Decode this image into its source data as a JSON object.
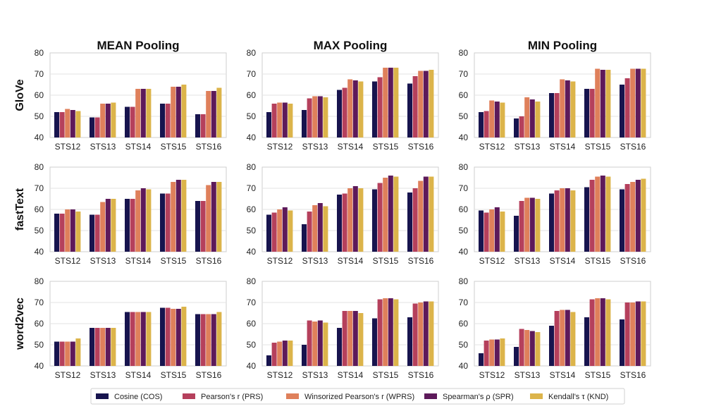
{
  "chart_data": {
    "type": "bar",
    "layout": "3x3 grid of grouped bar charts",
    "columns": [
      "MEAN Pooling",
      "MAX Pooling",
      "MIN Pooling"
    ],
    "rows": [
      "GloVe",
      "fastText",
      "word2vec"
    ],
    "categories": [
      "STS12",
      "STS13",
      "STS14",
      "STS15",
      "STS16"
    ],
    "ylim": [
      40,
      80
    ],
    "yticks": [
      "40",
      "50",
      "60",
      "70",
      "80"
    ],
    "grid": true,
    "legend_placement": "bottom-center",
    "series": [
      {
        "name": "Cosine (COS)",
        "color": "#17144e"
      },
      {
        "name": "Pearson's r (PRS)",
        "color": "#b5405c"
      },
      {
        "name": "Winsorized Pearson's r (WPRS)",
        "color": "#df805b"
      },
      {
        "name": "Spearman's ρ (SPR)",
        "color": "#5d1a5a"
      },
      {
        "name": "Kendall's τ (KND)",
        "color": "#dcb44a"
      }
    ],
    "panels": [
      [
        {
          "row": "GloVe",
          "column": "MEAN Pooling",
          "values": [
            [
              52,
              52,
              53.5,
              53,
              52.5
            ],
            [
              49.5,
              49.5,
              56,
              56,
              56.5
            ],
            [
              54.5,
              54.5,
              63,
              63,
              63
            ],
            [
              56,
              56,
              64,
              64,
              65
            ],
            [
              51,
              51,
              62,
              62,
              63.5
            ]
          ]
        },
        {
          "row": "GloVe",
          "column": "MAX Pooling",
          "values": [
            [
              52,
              56,
              56.5,
              56.5,
              56
            ],
            [
              53,
              58.5,
              59.5,
              59.5,
              59
            ],
            [
              62.5,
              63.5,
              67.5,
              67,
              66.5
            ],
            [
              66.5,
              68.5,
              73,
              73,
              73
            ],
            [
              65.5,
              69,
              71.5,
              71.5,
              72
            ]
          ]
        },
        {
          "row": "GloVe",
          "column": "MIN Pooling",
          "values": [
            [
              52,
              52.5,
              57.5,
              57,
              56.5
            ],
            [
              49,
              50,
              59,
              58,
              57
            ],
            [
              61,
              61,
              67.5,
              67,
              66.5
            ],
            [
              63,
              63,
              72.5,
              72,
              72
            ],
            [
              65,
              68,
              72.5,
              72.5,
              72.5
            ]
          ]
        }
      ],
      [
        {
          "row": "fastText",
          "column": "MEAN Pooling",
          "values": [
            [
              58,
              58,
              60,
              60,
              59
            ],
            [
              57.5,
              57.5,
              63.5,
              65,
              65
            ],
            [
              65,
              65,
              69,
              70,
              69.5
            ],
            [
              67.5,
              67.5,
              73,
              74,
              74
            ],
            [
              64,
              64,
              71.5,
              73,
              73
            ]
          ]
        },
        {
          "row": "fastText",
          "column": "MAX Pooling",
          "values": [
            [
              57.5,
              58.5,
              60,
              61,
              59.5
            ],
            [
              53,
              59,
              62,
              63,
              61.5
            ],
            [
              67,
              67.5,
              70,
              71,
              70
            ],
            [
              69.5,
              72.5,
              75,
              76,
              75.5
            ],
            [
              68,
              70,
              73.5,
              75.5,
              75.5
            ]
          ]
        },
        {
          "row": "fastText",
          "column": "MIN Pooling",
          "values": [
            [
              59.5,
              58.5,
              60,
              61,
              59
            ],
            [
              57,
              64,
              65.5,
              65.5,
              65
            ],
            [
              67.5,
              69,
              70,
              70,
              69
            ],
            [
              70.5,
              74,
              75.5,
              76,
              75.5
            ],
            [
              69.5,
              72,
              73,
              74,
              74.5
            ]
          ]
        }
      ],
      [
        {
          "row": "word2vec",
          "column": "MEAN Pooling",
          "values": [
            [
              51.5,
              51.5,
              51.5,
              51.5,
              53
            ],
            [
              58,
              58,
              58,
              58,
              58
            ],
            [
              65.5,
              65.5,
              65.5,
              65.5,
              65.5
            ],
            [
              67.5,
              67.5,
              67,
              67,
              68
            ],
            [
              64.5,
              64.5,
              64.5,
              64.5,
              65.5
            ]
          ]
        },
        {
          "row": "word2vec",
          "column": "MAX Pooling",
          "values": [
            [
              45,
              51,
              51.5,
              52,
              52
            ],
            [
              50,
              61.5,
              61,
              61.5,
              60.5
            ],
            [
              58,
              66,
              66,
              66,
              65
            ],
            [
              62.5,
              71.5,
              72,
              72,
              71.5
            ],
            [
              63,
              69.5,
              70,
              70.5,
              70.5
            ]
          ]
        },
        {
          "row": "word2vec",
          "column": "MIN Pooling",
          "values": [
            [
              46,
              52,
              52.5,
              52.5,
              53
            ],
            [
              49,
              57.5,
              57,
              56.5,
              56
            ],
            [
              59,
              66,
              66.5,
              66.5,
              65.5
            ],
            [
              63,
              71.5,
              72,
              72,
              71.5
            ],
            [
              62,
              70,
              70,
              70.5,
              70.5
            ]
          ]
        }
      ]
    ]
  }
}
